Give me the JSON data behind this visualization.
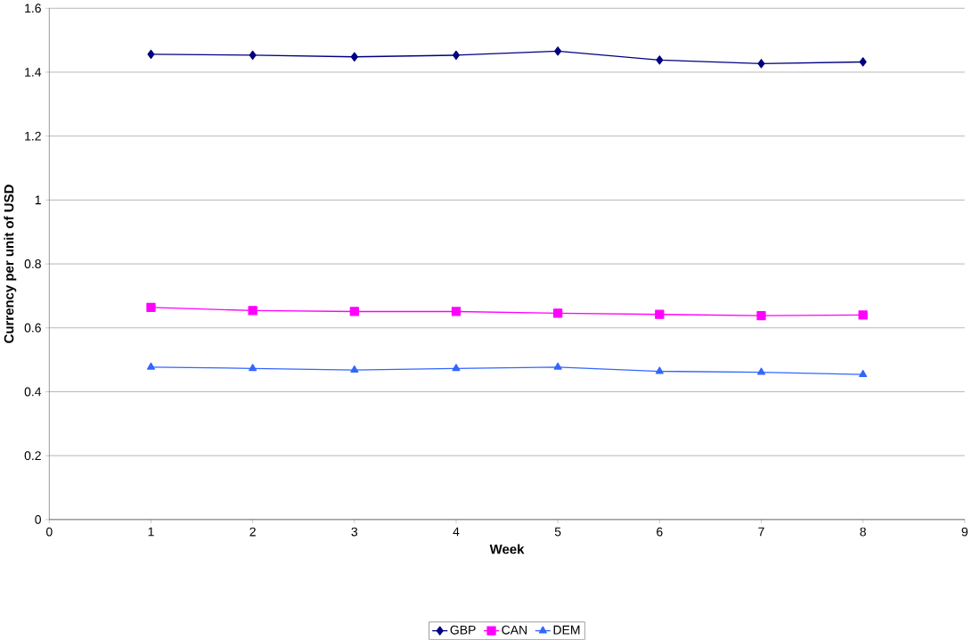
{
  "chart_data": {
    "type": "line",
    "xlabel": "Week",
    "ylabel": "Currency per unit of USD",
    "x": [
      1,
      2,
      3,
      4,
      5,
      6,
      7,
      8
    ],
    "series": [
      {
        "name": "GBP",
        "color": "#000080",
        "marker": "diamond",
        "values": [
          1.456,
          1.453,
          1.448,
          1.453,
          1.466,
          1.438,
          1.427,
          1.432
        ]
      },
      {
        "name": "CAN",
        "color": "#ff00ff",
        "marker": "square",
        "values": [
          0.664,
          0.654,
          0.651,
          0.651,
          0.646,
          0.642,
          0.638,
          0.64
        ]
      },
      {
        "name": "DEM",
        "color": "#3366ff",
        "marker": "triangle",
        "values": [
          0.477,
          0.473,
          0.468,
          0.473,
          0.477,
          0.464,
          0.461,
          0.454
        ]
      }
    ],
    "xlim": [
      0,
      9
    ],
    "xticks": [
      0,
      1,
      2,
      3,
      4,
      5,
      6,
      7,
      8,
      9
    ],
    "ylim": [
      0,
      1.6
    ],
    "yticks": [
      0,
      0.2,
      0.4,
      0.6,
      0.8,
      1,
      1.2,
      1.4,
      1.6
    ],
    "grid": "y",
    "legend": "bottom",
    "line_style": "solid"
  }
}
